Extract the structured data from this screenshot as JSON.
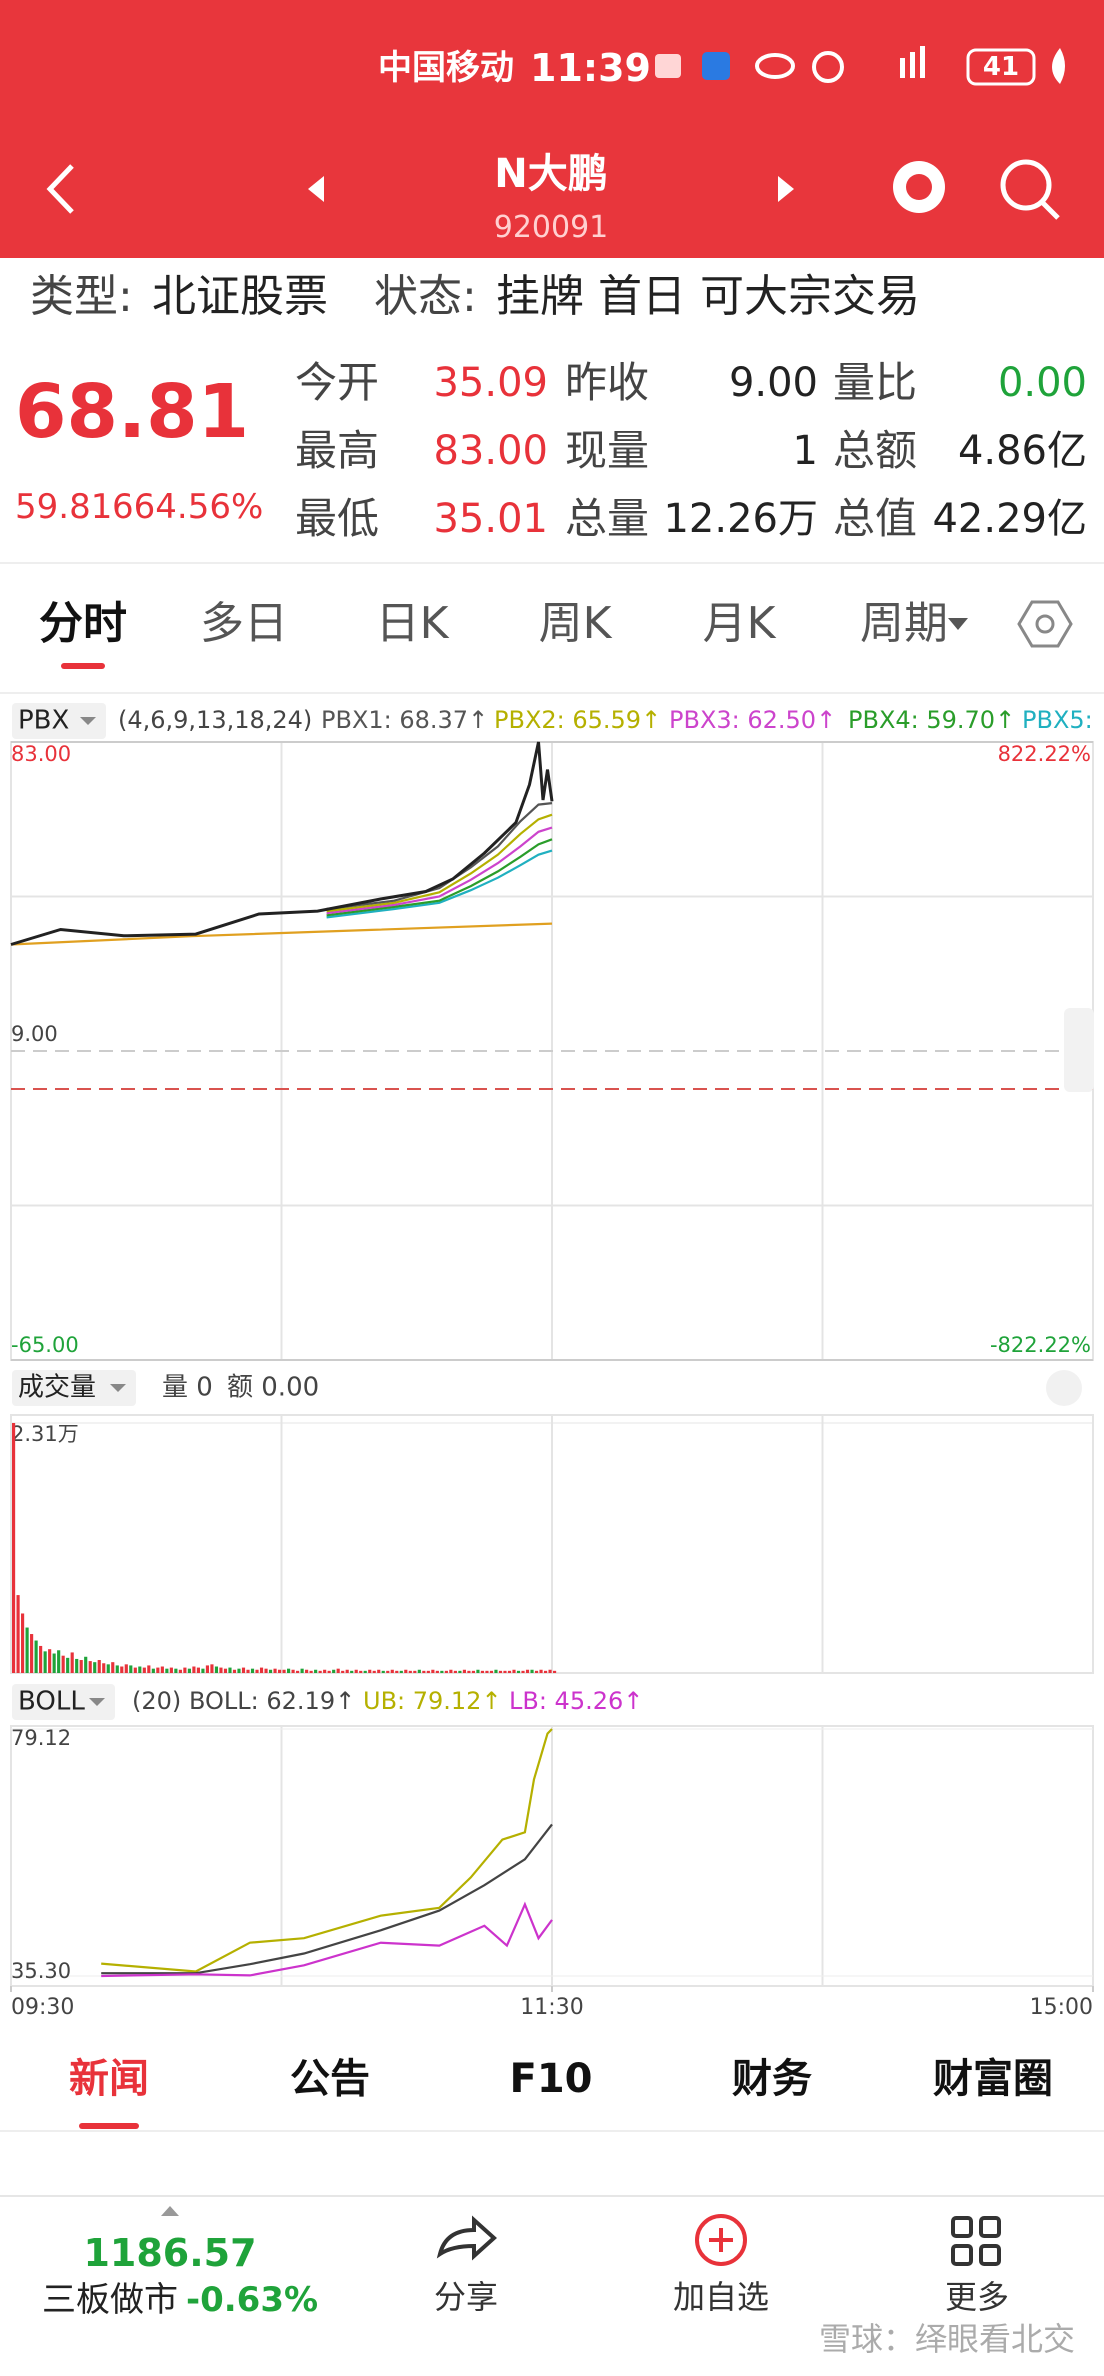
{
  "status_bar": {
    "carrier": "中国移动",
    "time": "11:39",
    "battery": "41"
  },
  "header": {
    "title": "N大鹏",
    "code": "920091"
  },
  "info": {
    "type_label": "类型:",
    "type": "北证股票",
    "status_label": "状态:",
    "status": "挂牌 首日 可大宗交易"
  },
  "quote": {
    "price": "68.81",
    "change": "59.81",
    "change_pct": "664.56%",
    "fields": [
      {
        "label": "今开",
        "value": "35.09",
        "color": "#e8323a"
      },
      {
        "label": "昨收",
        "value": "9.00",
        "color": "#222222"
      },
      {
        "label": "量比",
        "value": "0.00",
        "color": "#1fa33a"
      },
      {
        "label": "最高",
        "value": "83.00",
        "color": "#e8323a"
      },
      {
        "label": "现量",
        "value": "1",
        "color": "#222222"
      },
      {
        "label": "总额",
        "value": "4.86亿",
        "color": "#222222"
      },
      {
        "label": "最低",
        "value": "35.01",
        "color": "#e8323a"
      },
      {
        "label": "总量",
        "value": "12.26万",
        "color": "#222222"
      },
      {
        "label": "总值",
        "value": "42.29亿",
        "color": "#222222"
      }
    ]
  },
  "tabs": {
    "items": [
      "分时",
      "多日",
      "日K",
      "周K",
      "月K",
      "周期"
    ],
    "active": 0
  },
  "charts": {
    "price": {
      "type": "line",
      "indicator": "PBX",
      "params": "(4,6,9,13,18,24)",
      "legend": [
        {
          "text": "PBX1: 68.37↑",
          "color": "#555555"
        },
        {
          "text": "PBX2: 65.59↑",
          "color": "#b5b000"
        },
        {
          "text": "PBX3: 62.50↑",
          "color": "#cc44cc"
        },
        {
          "text": "PBX4: 59.70↑",
          "color": "#2a9d2a"
        },
        {
          "text": "PBX5:",
          "color": "#20b0c0"
        }
      ],
      "xlim": [
        0,
        240
      ],
      "ylim": [
        -65,
        83
      ],
      "yticks": [
        {
          "value": 83,
          "label": "83.00"
        },
        {
          "value": 9,
          "label": "9.00"
        },
        {
          "value": -65,
          "label": "-65.00"
        }
      ],
      "ytick_colors": [
        "#e8323a",
        "#444444",
        "#1fa33a"
      ],
      "y2lim": [
        -822.22,
        822.22
      ],
      "y2ticks": [
        {
          "value": 822.22,
          "label": "822.22%"
        },
        {
          "value": -822.22,
          "label": "-822.22%"
        }
      ],
      "y2tick_colors": [
        "#e8323a",
        "#1fa33a"
      ],
      "series": [
        {
          "color": "#e0a020",
          "x": [
            0,
            40,
            80,
            120
          ],
          "values": [
            34.5,
            36.5,
            38.0,
            39.5
          ]
        },
        {
          "color": "#20b0c0",
          "x": [
            70,
            85,
            95,
            102,
            108,
            113,
            117,
            120
          ],
          "values": [
            41,
            43,
            44.5,
            47.5,
            50.5,
            53.5,
            56,
            57
          ]
        },
        {
          "color": "#2a9d2a",
          "x": [
            70,
            85,
            95,
            102,
            108,
            113,
            117,
            120
          ],
          "values": [
            41.5,
            43.5,
            45,
            48.5,
            52,
            55.5,
            58.5,
            59.7
          ]
        },
        {
          "color": "#cc44cc",
          "x": [
            70,
            85,
            95,
            102,
            108,
            113,
            117,
            120
          ],
          "values": [
            42,
            44,
            46,
            50,
            54,
            58,
            61.5,
            62.5
          ]
        },
        {
          "color": "#b5b000",
          "x": [
            70,
            85,
            95,
            102,
            108,
            113,
            117,
            120
          ],
          "values": [
            42.5,
            44.5,
            47,
            51.5,
            56,
            61,
            64.5,
            65.59
          ]
        },
        {
          "color": "#555555",
          "x": [
            70,
            85,
            95,
            102,
            108,
            113,
            117,
            120
          ],
          "values": [
            43,
            45,
            48,
            53,
            58,
            64,
            68,
            68.37
          ]
        },
        {
          "color": "#222222",
          "x": [
            0,
            11,
            25,
            41,
            55,
            68,
            82,
            92,
            98,
            105,
            112,
            115,
            117,
            118,
            119,
            120
          ],
          "values": [
            34.5,
            38.1,
            36.6,
            37.0,
            41.8,
            42.5,
            45.4,
            47.2,
            50.2,
            56.4,
            63.7,
            72.8,
            83.0,
            69.1,
            76.4,
            68.81
          ]
        }
      ]
    },
    "volume": {
      "type": "bar",
      "title": "成交量",
      "vol": "量 0",
      "amount": "额 0.00",
      "xlim": [
        0,
        240
      ],
      "ylim": [
        0,
        2.31
      ],
      "yticks": [
        {
          "value": 2.31,
          "label": "2.31万"
        }
      ],
      "values": [
        2.31,
        0.72,
        0.55,
        0.42,
        0.36,
        0.3,
        0.25,
        0.2,
        0.22,
        0.18,
        0.21,
        0.16,
        0.14,
        0.19,
        0.13,
        0.12,
        0.15,
        0.11,
        0.1,
        0.12,
        0.09,
        0.08,
        0.1,
        0.07,
        0.06,
        0.08,
        0.07,
        0.05,
        0.06,
        0.05,
        0.07,
        0.04,
        0.05,
        0.06,
        0.04,
        0.05,
        0.04,
        0.03,
        0.05,
        0.04,
        0.06,
        0.05,
        0.04,
        0.07,
        0.08,
        0.06,
        0.05,
        0.04,
        0.05,
        0.03,
        0.04,
        0.05,
        0.03,
        0.04,
        0.03,
        0.05,
        0.04,
        0.03,
        0.04,
        0.03,
        0.03,
        0.04,
        0.03,
        0.02,
        0.04,
        0.03,
        0.02,
        0.03,
        0.02,
        0.03,
        0.02,
        0.03,
        0.04,
        0.02,
        0.03,
        0.02,
        0.03,
        0.02,
        0.02,
        0.03,
        0.02,
        0.03,
        0.02,
        0.02,
        0.03,
        0.02,
        0.02,
        0.03,
        0.02,
        0.02,
        0.03,
        0.02,
        0.02,
        0.03,
        0.02,
        0.02,
        0.02,
        0.03,
        0.02,
        0.02,
        0.03,
        0.02,
        0.02,
        0.03,
        0.02,
        0.02,
        0.02,
        0.03,
        0.02,
        0.02,
        0.02,
        0.03,
        0.02,
        0.02,
        0.03,
        0.03,
        0.02,
        0.03,
        0.02,
        0.03,
        0.02
      ],
      "colors": [
        "#e8323a",
        "#e8323a",
        "#e8323a",
        "#1fa33a",
        "#e8323a",
        "#1fa33a",
        "#e8323a",
        "#1fa33a",
        "#e8323a",
        "#1fa33a",
        "#1fa33a",
        "#e8323a",
        "#1fa33a",
        "#e8323a",
        "#1fa33a",
        "#e8323a",
        "#1fa33a",
        "#e8323a",
        "#1fa33a",
        "#e8323a",
        "#e8323a",
        "#1fa33a",
        "#e8323a",
        "#1fa33a",
        "#e8323a",
        "#e8323a",
        "#1fa33a",
        "#e8323a",
        "#1fa33a",
        "#e8323a",
        "#e8323a",
        "#1fa33a",
        "#e8323a",
        "#e8323a",
        "#1fa33a",
        "#e8323a",
        "#1fa33a",
        "#e8323a",
        "#e8323a",
        "#1fa33a",
        "#e8323a",
        "#e8323a",
        "#1fa33a",
        "#e8323a",
        "#e8323a",
        "#1fa33a",
        "#e8323a",
        "#e8323a",
        "#1fa33a",
        "#e8323a",
        "#1fa33a",
        "#e8323a",
        "#e8323a",
        "#1fa33a",
        "#e8323a",
        "#e8323a",
        "#e8323a",
        "#1fa33a",
        "#e8323a",
        "#e8323a",
        "#e8323a",
        "#1fa33a",
        "#e8323a",
        "#e8323a",
        "#1fa33a",
        "#e8323a",
        "#e8323a",
        "#1fa33a",
        "#e8323a",
        "#e8323a",
        "#e8323a",
        "#1fa33a",
        "#e8323a",
        "#e8323a",
        "#e8323a",
        "#1fa33a",
        "#e8323a",
        "#e8323a",
        "#1fa33a",
        "#e8323a",
        "#e8323a",
        "#e8323a",
        "#1fa33a",
        "#e8323a",
        "#e8323a",
        "#e8323a",
        "#1fa33a",
        "#e8323a",
        "#e8323a",
        "#e8323a",
        "#1fa33a",
        "#e8323a",
        "#e8323a",
        "#e8323a",
        "#e8323a",
        "#1fa33a",
        "#e8323a",
        "#e8323a",
        "#e8323a",
        "#1fa33a",
        "#e8323a",
        "#e8323a",
        "#e8323a",
        "#1fa33a",
        "#e8323a",
        "#e8323a",
        "#e8323a",
        "#1fa33a",
        "#e8323a",
        "#e8323a",
        "#e8323a",
        "#e8323a",
        "#1fa33a",
        "#e8323a",
        "#e8323a",
        "#1fa33a",
        "#e8323a",
        "#e8323a",
        "#e8323a",
        "#e8323a",
        "#e8323a"
      ]
    },
    "boll": {
      "type": "line",
      "indicator": "BOLL",
      "params": "(20)",
      "legend": [
        {
          "text": "BOLL: 62.19↑",
          "color": "#444444"
        },
        {
          "text": "UB: 79.12↑",
          "color": "#b5b000"
        },
        {
          "text": "LB: 45.26↑",
          "color": "#cc33cc"
        }
      ],
      "xlim": [
        0,
        240
      ],
      "ylim": [
        35.3,
        79.12
      ],
      "yticks": [
        {
          "value": 79.12,
          "label": "79.12"
        },
        {
          "value": 35.3,
          "label": "35.30"
        }
      ],
      "xticks": [
        {
          "value": 0,
          "label": "09:30"
        },
        {
          "value": 120,
          "label": "11:30"
        },
        {
          "value": 240,
          "label": "15:00"
        }
      ],
      "series": [
        {
          "color": "#b5b000",
          "x": [
            20,
            41,
            53,
            65,
            82,
            95,
            102,
            109,
            114,
            116,
            119,
            120
          ],
          "values": [
            37.5,
            36.1,
            41.2,
            42.0,
            46.0,
            47.4,
            52.8,
            59.5,
            60.8,
            70.2,
            78.3,
            79.12
          ]
        },
        {
          "color": "#444444",
          "x": [
            20,
            41,
            53,
            65,
            82,
            95,
            105,
            114,
            120
          ],
          "values": [
            35.8,
            35.8,
            37.4,
            39.3,
            43.4,
            46.9,
            51.4,
            56.0,
            62.19
          ]
        },
        {
          "color": "#cc33cc",
          "x": [
            20,
            41,
            53,
            65,
            82,
            95,
            105,
            110,
            114,
            117,
            120
          ],
          "values": [
            35.3,
            35.6,
            35.4,
            37.2,
            41.2,
            40.7,
            44.2,
            40.7,
            48.0,
            42.0,
            45.26
          ]
        }
      ]
    }
  },
  "news_tabs": {
    "items": [
      "新闻",
      "公告",
      "F10",
      "财务",
      "财富圈"
    ],
    "active": 0
  },
  "footer": {
    "index_value": "1186.57",
    "index_name": "三板做市",
    "index_change": "-0.63%",
    "actions": [
      "分享",
      "加自选",
      "更多"
    ]
  },
  "watermark": "雪球：绎眼看北交"
}
